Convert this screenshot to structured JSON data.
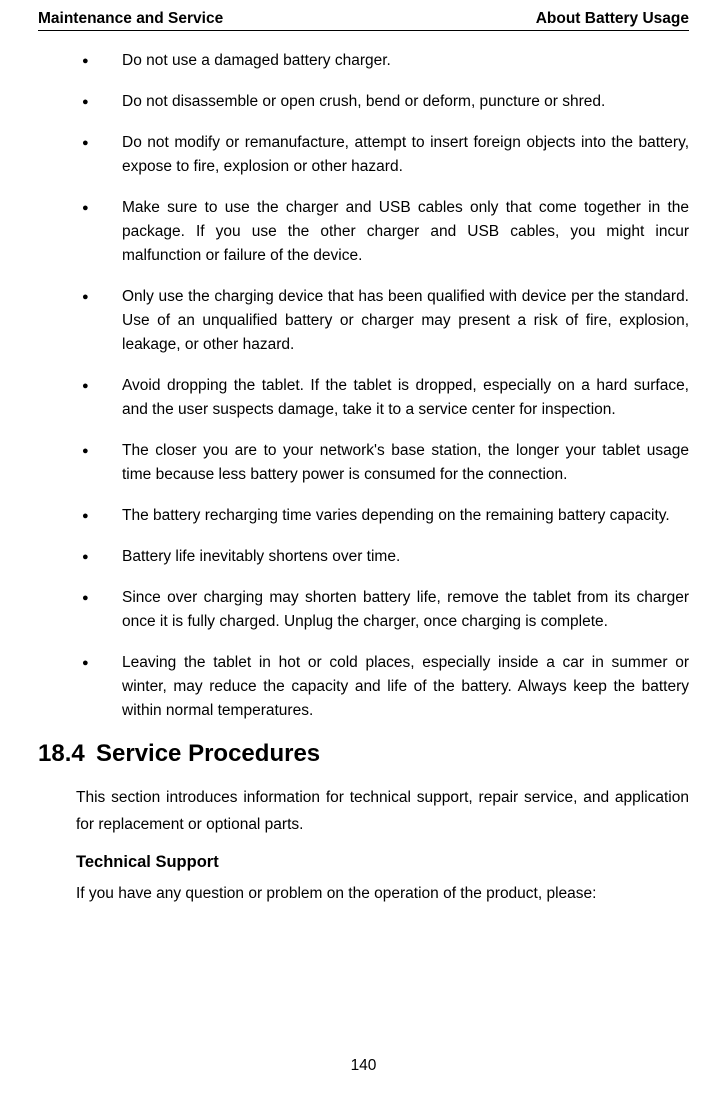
{
  "header": {
    "left": "Maintenance and Service",
    "right": "About Battery Usage"
  },
  "bullets": [
    "Do not use a damaged battery charger.",
    "Do not disassemble or open crush, bend or deform, puncture or shred.",
    "Do not modify or remanufacture, attempt to insert foreign objects into the battery, expose to fire, explosion or other hazard.",
    "Make sure to use the charger and USB cables only that come together in the package. If you use the other charger and USB cables, you might incur malfunction or failure of the device.",
    "Only use the charging device that has been qualified with device per the standard. Use of an unqualified battery or charger may present a risk of fire, explosion, leakage, or other hazard.",
    "Avoid dropping the tablet. If the tablet is dropped, especially on a hard surface, and the user suspects damage, take it to a service center for inspection.",
    "The closer you are to your network's base station, the longer your tablet usage time because less battery power is consumed for the connection.",
    "The battery recharging time varies depending on the remaining battery capacity.",
    "Battery life inevitably shortens over time.",
    "Since over charging may shorten battery life, remove the tablet from its charger once it is fully charged. Unplug the charger, once charging is complete.",
    "Leaving the tablet in hot or cold places, especially inside a car in summer or winter, may reduce the capacity and life of the battery. Always keep the battery within normal temperatures."
  ],
  "section": {
    "number": "18.4",
    "title": "Service Procedures",
    "intro": "This section introduces information for technical support, repair service, and application for replacement or optional parts.",
    "sub1_title": "Technical Support",
    "sub1_body": "If you have any question or problem on the operation of the product, please:"
  },
  "page_number": "140"
}
